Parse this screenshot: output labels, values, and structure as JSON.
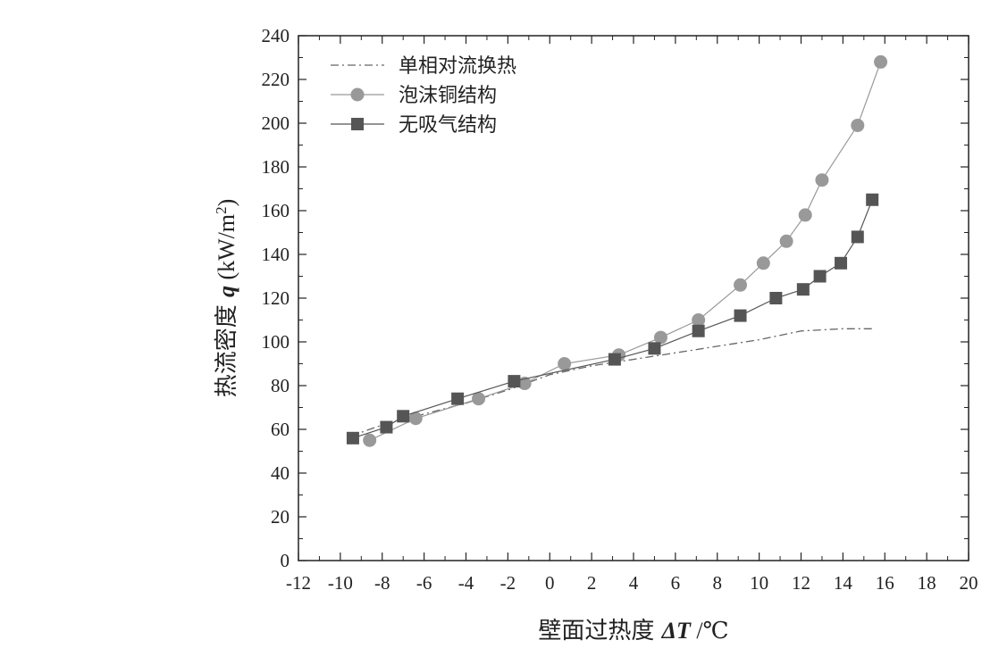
{
  "chart_data": {
    "type": "line",
    "xlabel": {
      "prefix": "壁面过热度 ",
      "delta": "Δ",
      "var": "T",
      "suffix": " /℃"
    },
    "ylabel": {
      "prefix": "热流密度 ",
      "var": "q",
      "unit": " (kW/m",
      "sup": "2",
      "close": ")"
    },
    "xlim": [
      -12,
      20
    ],
    "ylim": [
      0,
      240
    ],
    "xticks": [
      -12,
      -10,
      -8,
      -6,
      -4,
      -2,
      0,
      2,
      4,
      6,
      8,
      10,
      12,
      14,
      16,
      18,
      20
    ],
    "yticks": [
      0,
      20,
      40,
      60,
      80,
      100,
      120,
      140,
      160,
      180,
      200,
      220,
      240
    ],
    "series": [
      {
        "name": "单相对流换热",
        "marker": "none",
        "style": "dash-dot",
        "color": "#666666",
        "x": [
          -9.5,
          -8,
          -6,
          -4,
          -2,
          0,
          2,
          4,
          6,
          8,
          10,
          12,
          14,
          15.4
        ],
        "y": [
          57,
          62,
          67,
          72,
          78,
          85,
          89,
          92,
          95,
          98,
          101,
          105,
          106,
          106
        ]
      },
      {
        "name": "泡沫铜结构",
        "marker": "circle",
        "style": "solid",
        "color": "#999999",
        "x": [
          -8.6,
          -6.4,
          -3.4,
          -1.2,
          0.7,
          3.3,
          5.3,
          7.1,
          9.1,
          10.2,
          11.3,
          12.2,
          13,
          14.7,
          15.8
        ],
        "y": [
          55,
          65,
          74,
          81,
          90,
          94,
          102,
          110,
          126,
          136,
          146,
          158,
          174,
          199,
          228
        ]
      },
      {
        "name": "无吸气结构",
        "marker": "square",
        "style": "solid",
        "color": "#555555",
        "x": [
          -9.4,
          -7.8,
          -7,
          -4.4,
          -1.7,
          3.1,
          5.0,
          7.1,
          9.1,
          10.8,
          12.1,
          12.9,
          13.9,
          14.7,
          15.4
        ],
        "y": [
          56,
          61,
          66,
          74,
          82,
          92,
          97,
          105,
          112,
          120,
          124,
          130,
          136,
          148,
          165
        ]
      }
    ],
    "legend_position": "top-left"
  }
}
